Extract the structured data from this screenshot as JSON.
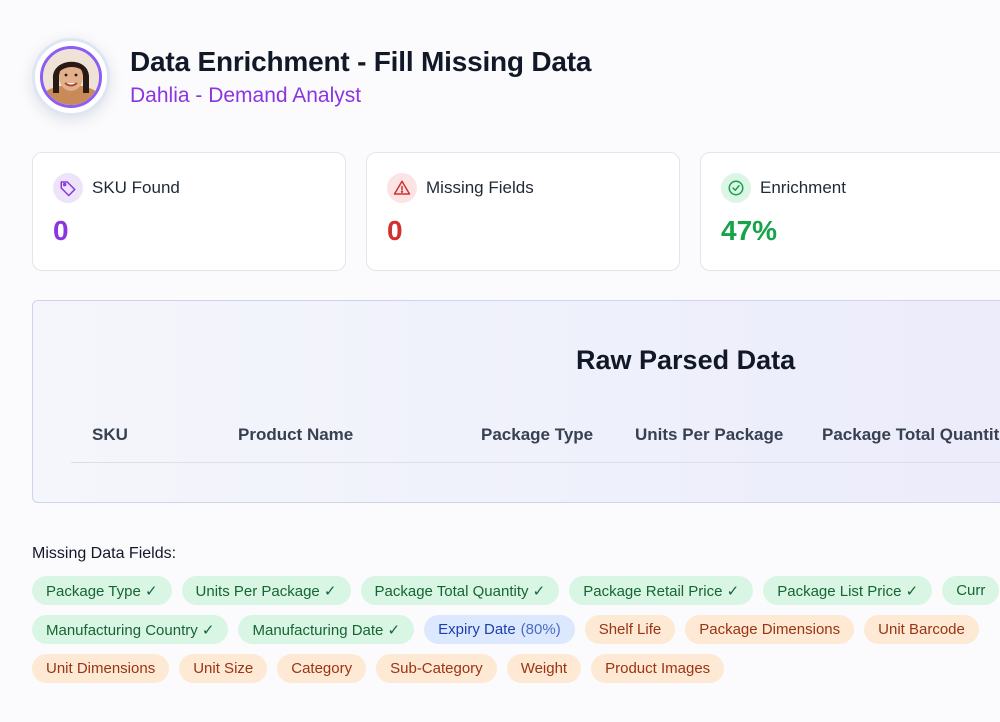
{
  "header": {
    "title": "Data Enrichment - Fill Missing Data",
    "subtitle": "Dahlia - Demand Analyst"
  },
  "stats": [
    {
      "label": "SKU Found",
      "value": "0",
      "icon": "tag-icon",
      "color": "#8b35e0",
      "icon_bg": "#ede4fb"
    },
    {
      "label": "Missing Fields",
      "value": "0",
      "icon": "warning-triangle-icon",
      "color": "#d32f2f",
      "icon_bg": "#fde4e4"
    },
    {
      "label": "Enrichment",
      "value": "47%",
      "icon": "check-circle-icon",
      "color": "#16a34a",
      "icon_bg": "#dcf5e4"
    }
  ],
  "raw_data": {
    "title": "Raw Parsed Data",
    "columns": [
      "SKU",
      "Product Name",
      "Package Type",
      "Units Per Package",
      "Package Total Quantit"
    ]
  },
  "missing": {
    "label": "Missing Data Fields:",
    "rows": [
      [
        {
          "text": "Package Type ✓",
          "status": "green"
        },
        {
          "text": "Units Per Package ✓",
          "status": "green"
        },
        {
          "text": "Package Total Quantity ✓",
          "status": "green"
        },
        {
          "text": "Package Retail Price ✓",
          "status": "green"
        },
        {
          "text": "Package List Price ✓",
          "status": "green"
        },
        {
          "text": "Curr",
          "status": "green"
        }
      ],
      [
        {
          "text": "Manufacturing Country ✓",
          "status": "green"
        },
        {
          "text": "Manufacturing Date ✓",
          "status": "green"
        },
        {
          "text": "Expiry Date",
          "pct": "(80%)",
          "status": "blue"
        },
        {
          "text": "Shelf Life",
          "status": "orange"
        },
        {
          "text": "Package Dimensions",
          "status": "orange"
        },
        {
          "text": "Unit Barcode",
          "status": "orange"
        }
      ],
      [
        {
          "text": "Unit Dimensions",
          "status": "orange"
        },
        {
          "text": "Unit Size",
          "status": "orange"
        },
        {
          "text": "Category",
          "status": "orange"
        },
        {
          "text": "Sub-Category",
          "status": "orange"
        },
        {
          "text": "Weight",
          "status": "orange"
        },
        {
          "text": "Product Images",
          "status": "orange"
        }
      ]
    ]
  }
}
